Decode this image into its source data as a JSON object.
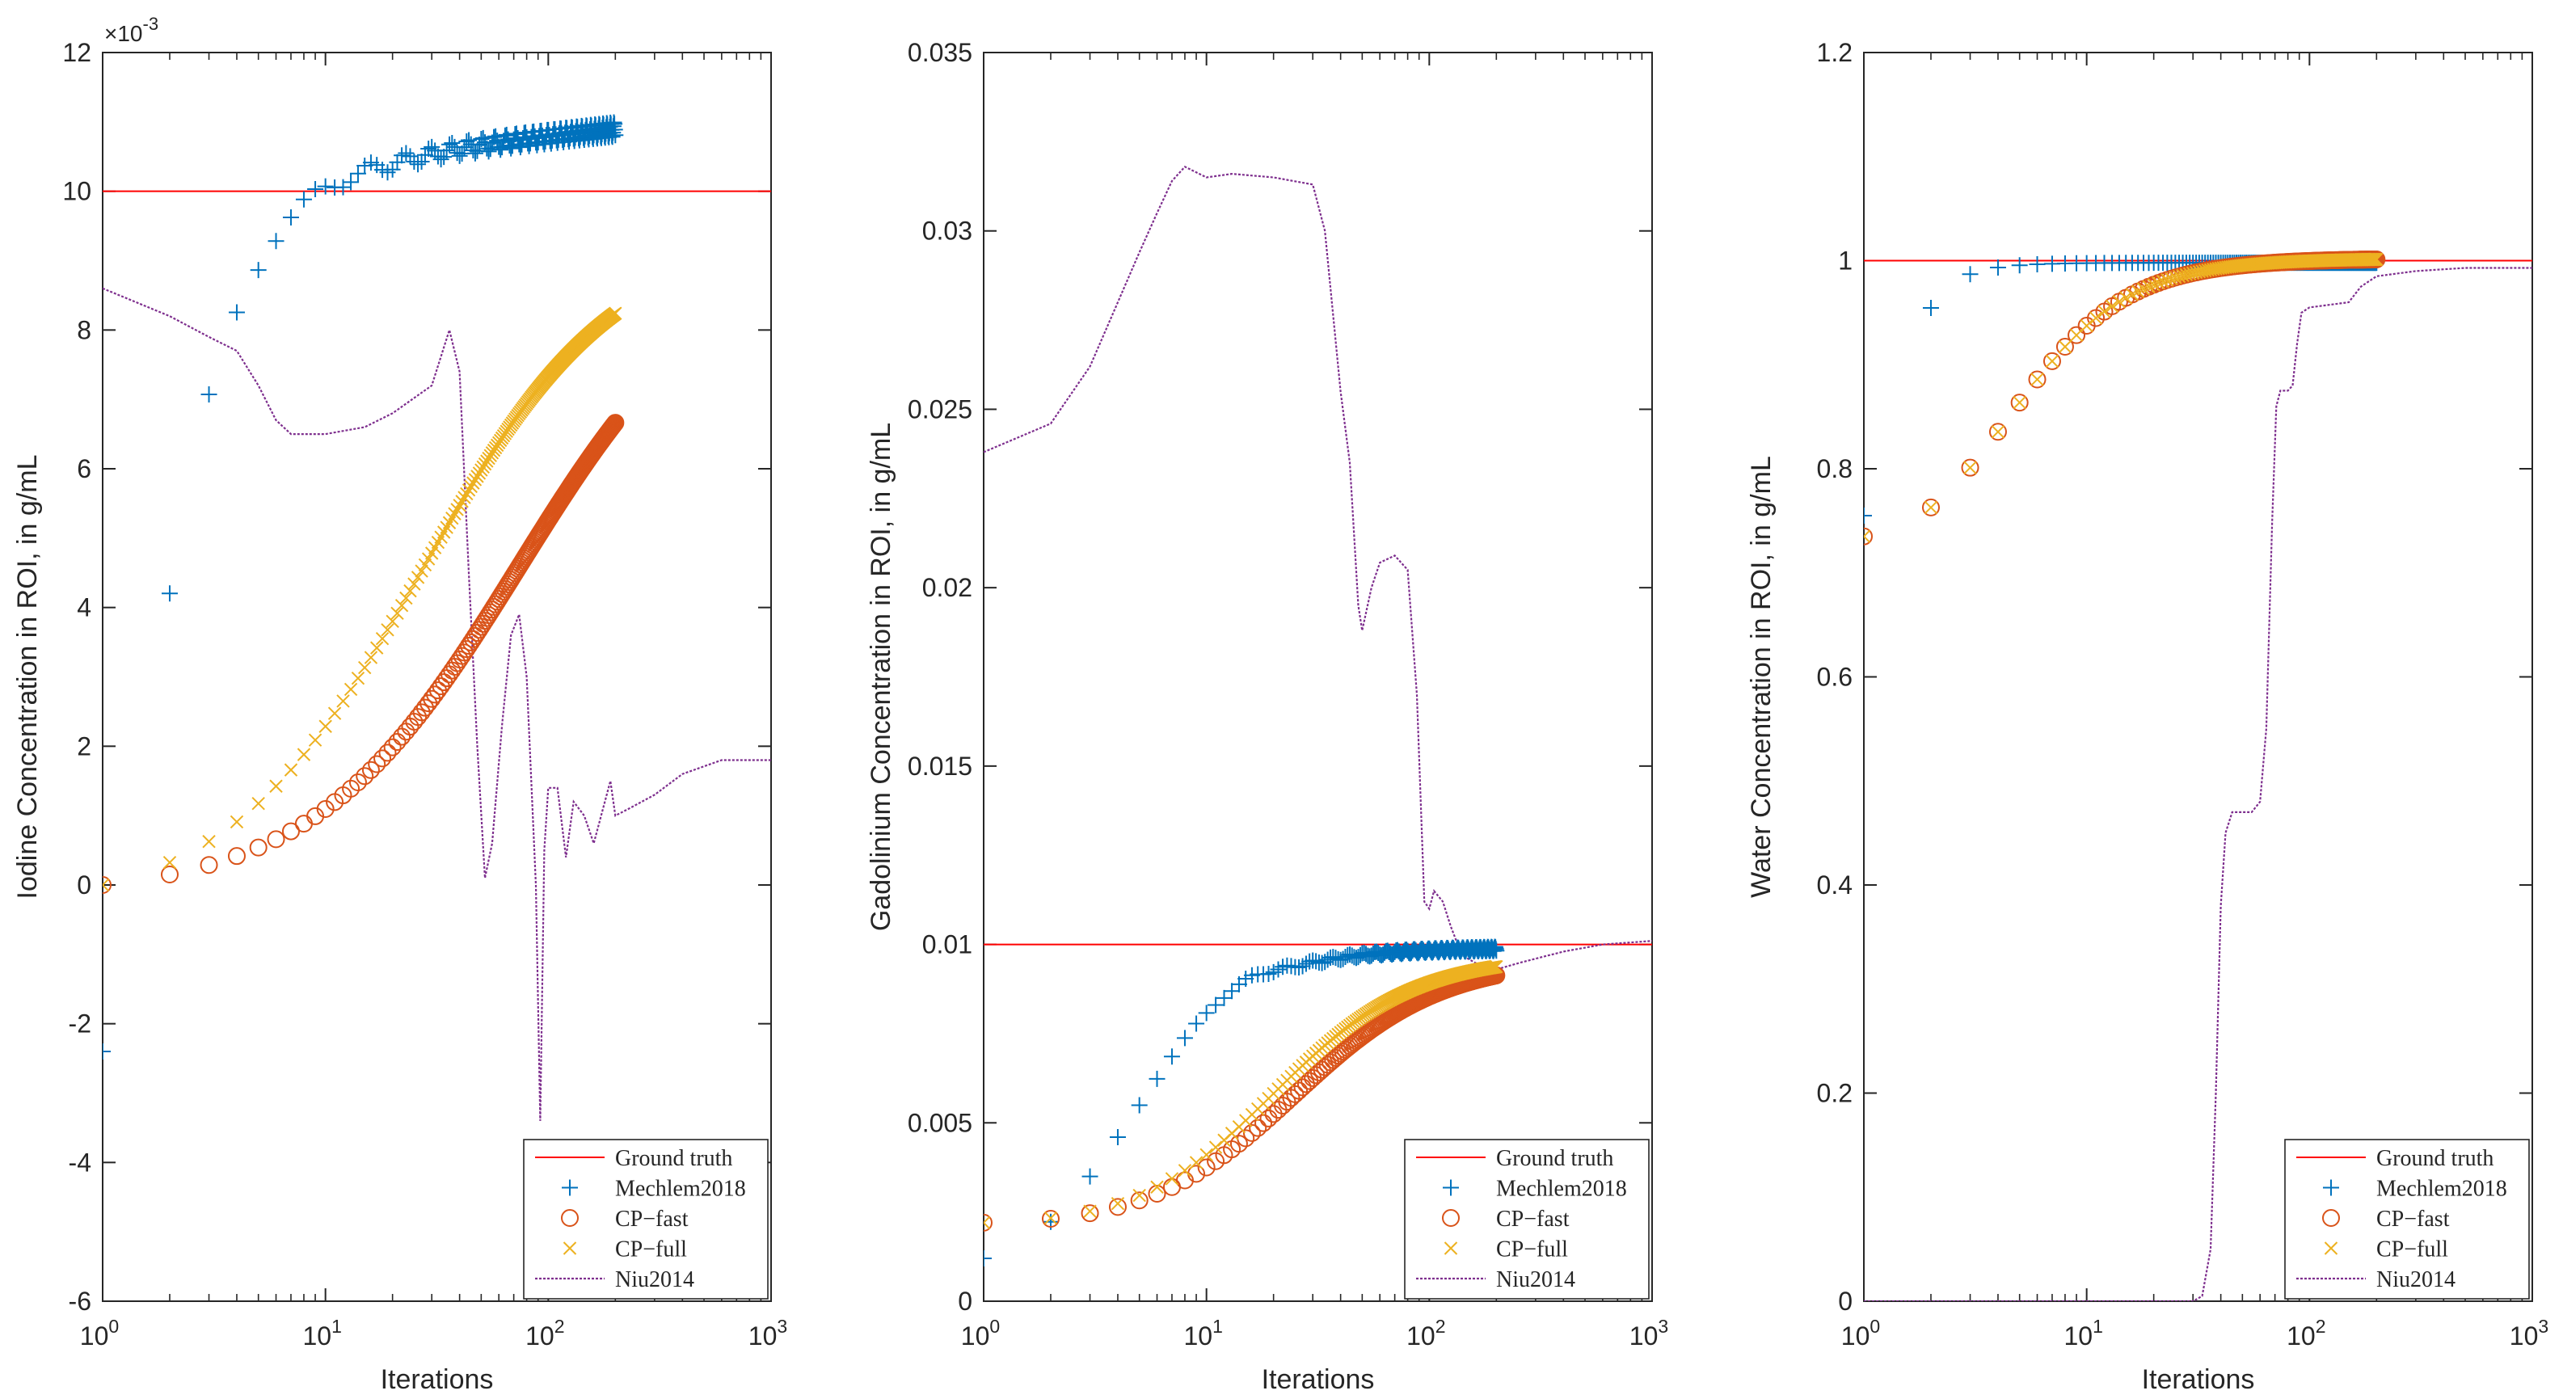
{
  "chart_data": [
    {
      "type": "line",
      "title": "",
      "xlabel": "Iterations",
      "ylabel": "Iodine Concentration in ROI, in g/mL",
      "xscale": "log",
      "xlim": [
        1,
        1000
      ],
      "ylim": [
        -0.006,
        0.012
      ],
      "exponent_label": "×10",
      "exponent_power": "-3",
      "xticks": [
        {
          "value": 1,
          "base": "10",
          "power": "0"
        },
        {
          "value": 10,
          "base": "10",
          "power": "1"
        },
        {
          "value": 100,
          "base": "10",
          "power": "2"
        },
        {
          "value": 1000,
          "base": "10",
          "power": "3"
        }
      ],
      "yticks": [
        {
          "value": -0.006,
          "label": "-6"
        },
        {
          "value": -0.004,
          "label": "-4"
        },
        {
          "value": -0.002,
          "label": "-2"
        },
        {
          "value": 0,
          "label": "0"
        },
        {
          "value": 0.002,
          "label": "2"
        },
        {
          "value": 0.004,
          "label": "4"
        },
        {
          "value": 0.006,
          "label": "6"
        },
        {
          "value": 0.008,
          "label": "8"
        },
        {
          "value": 0.01,
          "label": "10"
        },
        {
          "value": 0.012,
          "label": "12"
        }
      ],
      "ground_truth": 0.01,
      "legend_position": "bottom-right",
      "legend": [
        "Ground truth",
        "Mechlem2018",
        "CP−fast",
        "CP−full",
        "Niu2014"
      ],
      "curves": {
        "Mechlem2018": {
          "a": -0.0024,
          "b": 0.0106,
          "e": 0.00035,
          "k": 1.0,
          "n": 1.4,
          "bump": 0.0,
          "tail": 0.0003
        },
        "CP-fast": {
          "a": 0.0,
          "b": 0.0093,
          "e": 0.0,
          "k": 75,
          "n": 0.95,
          "bump": 0.0,
          "tail": 0
        },
        "CP-full": {
          "a": 0.0,
          "b": 0.0094,
          "e": 0.0,
          "k": 28,
          "n": 1.0,
          "bump": 0.0,
          "tail": 0
        }
      },
      "niu2014": [
        [
          1,
          0.0086
        ],
        [
          2,
          0.0082
        ],
        [
          3,
          0.0079
        ],
        [
          4,
          0.0077
        ],
        [
          5,
          0.0072
        ],
        [
          6,
          0.0067
        ],
        [
          7,
          0.0065
        ],
        [
          10,
          0.0065
        ],
        [
          15,
          0.0066
        ],
        [
          20,
          0.0068
        ],
        [
          30,
          0.0072
        ],
        [
          36,
          0.008
        ],
        [
          40,
          0.0074
        ],
        [
          44,
          0.0045
        ],
        [
          48,
          0.002
        ],
        [
          52,
          0.0001
        ],
        [
          56,
          0.0006
        ],
        [
          62,
          0.0023
        ],
        [
          68,
          0.0036
        ],
        [
          74,
          0.0039
        ],
        [
          80,
          0.003
        ],
        [
          88,
          0.0
        ],
        [
          92,
          -0.0034
        ],
        [
          96,
          0.0005
        ],
        [
          100,
          0.0014
        ],
        [
          110,
          0.0014
        ],
        [
          120,
          0.0004
        ],
        [
          130,
          0.0012
        ],
        [
          145,
          0.001
        ],
        [
          160,
          0.0006
        ],
        [
          190,
          0.0015
        ],
        [
          200,
          0.001
        ],
        [
          230,
          0.0011
        ],
        [
          300,
          0.0013
        ],
        [
          400,
          0.0016
        ],
        [
          600,
          0.0018
        ],
        [
          1000,
          0.0018
        ]
      ]
    },
    {
      "type": "line",
      "title": "",
      "xlabel": "Iterations",
      "ylabel": "Gadolinium Concentration in ROI, in g/mL",
      "xscale": "log",
      "xlim": [
        1,
        1000
      ],
      "ylim": [
        0,
        0.035
      ],
      "xticks": [
        {
          "value": 1,
          "base": "10",
          "power": "0"
        },
        {
          "value": 10,
          "base": "10",
          "power": "1"
        },
        {
          "value": 100,
          "base": "10",
          "power": "2"
        },
        {
          "value": 1000,
          "base": "10",
          "power": "3"
        }
      ],
      "yticks": [
        {
          "value": 0,
          "label": "0"
        },
        {
          "value": 0.005,
          "label": "0.005"
        },
        {
          "value": 0.01,
          "label": "0.01"
        },
        {
          "value": 0.015,
          "label": "0.015"
        },
        {
          "value": 0.02,
          "label": "0.02"
        },
        {
          "value": 0.025,
          "label": "0.025"
        },
        {
          "value": 0.03,
          "label": "0.03"
        },
        {
          "value": 0.035,
          "label": "0.035"
        }
      ],
      "ground_truth": 0.01,
      "legend_position": "bottom-right",
      "legend": [
        "Ground truth",
        "Mechlem2018",
        "CP−fast",
        "CP−full",
        "Niu2014"
      ],
      "curves": {
        "Mechlem2018": {
          "a": 0.0012,
          "b": 0.0099,
          "e": 0.0002,
          "k": 4.0,
          "n": 1.5,
          "bump": 0.00025,
          "tail": 0
        },
        "CP-fast": {
          "a": 0.0022,
          "b": 0.0096,
          "e": 0.0,
          "k": 25,
          "n": 1.3,
          "bump": 0.0,
          "tail": 0
        },
        "CP-full": {
          "a": 0.0022,
          "b": 0.0097,
          "e": 0.0,
          "k": 20,
          "n": 1.35,
          "bump": 0.0,
          "tail": 0
        }
      },
      "niu2014": [
        [
          1,
          0.0238
        ],
        [
          2,
          0.0246
        ],
        [
          3,
          0.0262
        ],
        [
          4,
          0.028
        ],
        [
          5,
          0.0294
        ],
        [
          6,
          0.0305
        ],
        [
          7,
          0.0314
        ],
        [
          8,
          0.0318
        ],
        [
          10,
          0.0315
        ],
        [
          13,
          0.0316
        ],
        [
          20,
          0.0315
        ],
        [
          30,
          0.0313
        ],
        [
          34,
          0.03
        ],
        [
          40,
          0.0255
        ],
        [
          44,
          0.0235
        ],
        [
          48,
          0.0195
        ],
        [
          50,
          0.0188
        ],
        [
          55,
          0.02
        ],
        [
          60,
          0.0207
        ],
        [
          70,
          0.0209
        ],
        [
          80,
          0.0205
        ],
        [
          88,
          0.017
        ],
        [
          95,
          0.0112
        ],
        [
          100,
          0.011
        ],
        [
          105,
          0.0115
        ],
        [
          115,
          0.0112
        ],
        [
          125,
          0.0105
        ],
        [
          140,
          0.0097
        ],
        [
          170,
          0.0094
        ],
        [
          200,
          0.0093
        ],
        [
          260,
          0.0095
        ],
        [
          400,
          0.0098
        ],
        [
          600,
          0.01
        ],
        [
          1000,
          0.0101
        ]
      ]
    },
    {
      "type": "line",
      "title": "",
      "xlabel": "Iterations",
      "ylabel": "Water Concentration in ROI, in g/mL",
      "xscale": "log",
      "xlim": [
        1,
        1000
      ],
      "ylim": [
        0,
        1.2
      ],
      "xticks": [
        {
          "value": 1,
          "base": "10",
          "power": "0"
        },
        {
          "value": 10,
          "base": "10",
          "power": "1"
        },
        {
          "value": 100,
          "base": "10",
          "power": "2"
        },
        {
          "value": 1000,
          "base": "10",
          "power": "3"
        }
      ],
      "yticks": [
        {
          "value": 0,
          "label": "0"
        },
        {
          "value": 0.2,
          "label": "0.2"
        },
        {
          "value": 0.4,
          "label": "0.4"
        },
        {
          "value": 0.6,
          "label": "0.6"
        },
        {
          "value": 0.8,
          "label": "0.8"
        },
        {
          "value": 1.0,
          "label": "1"
        },
        {
          "value": 1.2,
          "label": "1.2"
        }
      ],
      "ground_truth": 1.0,
      "legend_position": "bottom-right",
      "legend": [
        "Ground truth",
        "Mechlem2018",
        "CP−fast",
        "CP−full",
        "Niu2014"
      ],
      "curves": {
        "Mechlem2018": {
          "a": 0.755,
          "b": 0.998,
          "e": 0.0,
          "k": 0.5,
          "n": 2.2,
          "bump": 0.0,
          "tail": 0
        },
        "CP-fast": {
          "a": 0.735,
          "b": 1.002,
          "e": 0.0,
          "k": 4.2,
          "n": 1.5,
          "bump": 0.0,
          "tail": 0
        },
        "CP-full": {
          "a": 0.735,
          "b": 1.002,
          "e": 0.0,
          "k": 4.2,
          "n": 1.5,
          "bump": 0.0,
          "tail": 0
        }
      },
      "niu2014": [
        [
          1,
          0.0
        ],
        [
          30,
          0.0
        ],
        [
          33,
          0.005
        ],
        [
          36,
          0.05
        ],
        [
          38,
          0.2
        ],
        [
          40,
          0.38
        ],
        [
          42,
          0.45
        ],
        [
          45,
          0.47
        ],
        [
          55,
          0.47
        ],
        [
          60,
          0.48
        ],
        [
          64,
          0.55
        ],
        [
          68,
          0.75
        ],
        [
          71,
          0.86
        ],
        [
          74,
          0.875
        ],
        [
          80,
          0.875
        ],
        [
          84,
          0.88
        ],
        [
          88,
          0.92
        ],
        [
          92,
          0.95
        ],
        [
          100,
          0.955
        ],
        [
          150,
          0.96
        ],
        [
          170,
          0.975
        ],
        [
          200,
          0.985
        ],
        [
          300,
          0.99
        ],
        [
          500,
          0.993
        ],
        [
          1000,
          0.993
        ]
      ]
    }
  ],
  "series_colors": {
    "Ground truth": "#ff0000",
    "Mechlem2018": "#0072bd",
    "CP-fast": "#d95319",
    "CP-full": "#edb120",
    "Niu2014": "#7e2f8e"
  }
}
